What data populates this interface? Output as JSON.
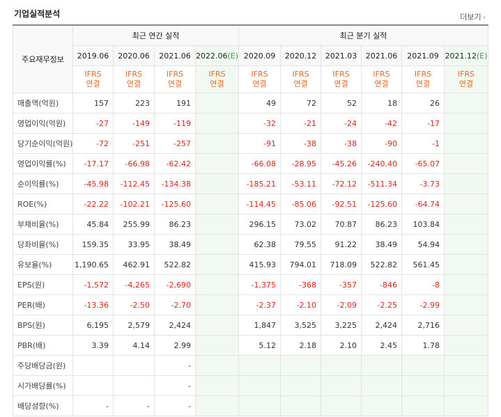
{
  "header": {
    "title": "기업실적분석",
    "more_label": "더보기"
  },
  "table": {
    "corner_label": "주요재무정보",
    "group_annual": "최근 연간 실적",
    "group_quarter": "최근 분기 실적",
    "periods": [
      "2019.06",
      "2020.06",
      "2021.06",
      "2022.06",
      "2020.09",
      "2020.12",
      "2021.03",
      "2021.06",
      "2021.09",
      "2021.12"
    ],
    "estimate_mark": "(E)",
    "ifrs_top": "IFRS",
    "ifrs_bottom": "연결",
    "rows": [
      {
        "label": "매출액(억원)",
        "values": [
          "157",
          "223",
          "191",
          "",
          "49",
          "72",
          "52",
          "18",
          "26",
          ""
        ]
      },
      {
        "label": "영업이익(억원)",
        "values": [
          "-27",
          "-149",
          "-119",
          "",
          "-32",
          "-21",
          "-24",
          "-42",
          "-17",
          ""
        ]
      },
      {
        "label": "당기순이익(억원)",
        "values": [
          "-72",
          "-251",
          "-257",
          "",
          "-91",
          "-38",
          "-38",
          "-90",
          "-1",
          ""
        ]
      },
      {
        "label": "영업이익률(%)",
        "values": [
          "-17.17",
          "-66.98",
          "-62.42",
          "",
          "-66.08",
          "-28.95",
          "-45.26",
          "-240.40",
          "-65.07",
          ""
        ]
      },
      {
        "label": "순이익률(%)",
        "values": [
          "-45.98",
          "-112.45",
          "-134.38",
          "",
          "-185.21",
          "-53.11",
          "-72.12",
          "-511.34",
          "-3.73",
          ""
        ]
      },
      {
        "label": "ROE(%)",
        "values": [
          "-22.22",
          "-102.21",
          "-125.60",
          "",
          "-114.45",
          "-85.06",
          "-92.51",
          "-125.60",
          "-64.74",
          ""
        ]
      },
      {
        "label": "부채비율(%)",
        "values": [
          "45.84",
          "255.99",
          "86.23",
          "",
          "296.15",
          "73.02",
          "70.87",
          "86.23",
          "103.84",
          ""
        ]
      },
      {
        "label": "당좌비율(%)",
        "values": [
          "159.35",
          "33.95",
          "38.49",
          "",
          "62.38",
          "79.55",
          "91.22",
          "38.49",
          "54.94",
          ""
        ]
      },
      {
        "label": "유보율(%)",
        "values": [
          "1,190.65",
          "462.91",
          "522.82",
          "",
          "415.93",
          "794.01",
          "718.09",
          "522.82",
          "561.45",
          ""
        ]
      },
      {
        "label": "EPS(원)",
        "values": [
          "-1,572",
          "-4,265",
          "-2,690",
          "",
          "-1,375",
          "-368",
          "-357",
          "-846",
          "-8",
          ""
        ]
      },
      {
        "label": "PER(배)",
        "values": [
          "-13.36",
          "-2.50",
          "-2.70",
          "",
          "-2.37",
          "-2.10",
          "-2.09",
          "-2.25",
          "-2.99",
          ""
        ]
      },
      {
        "label": "BPS(원)",
        "values": [
          "6,195",
          "2,579",
          "2,424",
          "",
          "1,847",
          "3,525",
          "3,225",
          "2,424",
          "2,716",
          ""
        ]
      },
      {
        "label": "PBR(배)",
        "values": [
          "3.39",
          "4.14",
          "2.99",
          "",
          "5.12",
          "2.18",
          "2.10",
          "2.45",
          "1.78",
          ""
        ]
      },
      {
        "label": "주당배당금(원)",
        "values": [
          "",
          "",
          "-",
          "",
          "",
          "",
          "",
          "",
          "",
          ""
        ]
      },
      {
        "label": "시가배당률(%)",
        "values": [
          "",
          "",
          "-",
          "",
          "",
          "",
          "",
          "",
          "",
          ""
        ]
      },
      {
        "label": "배당성향(%)",
        "values": [
          "-",
          "-",
          "-",
          "",
          "",
          "",
          "",
          "",
          "",
          ""
        ]
      }
    ]
  },
  "colors": {
    "negative": "#e0241b",
    "ifrs": "#e36a2a",
    "estimate": "#3a9b3a",
    "estimate_bg": "#f2f9f2"
  }
}
